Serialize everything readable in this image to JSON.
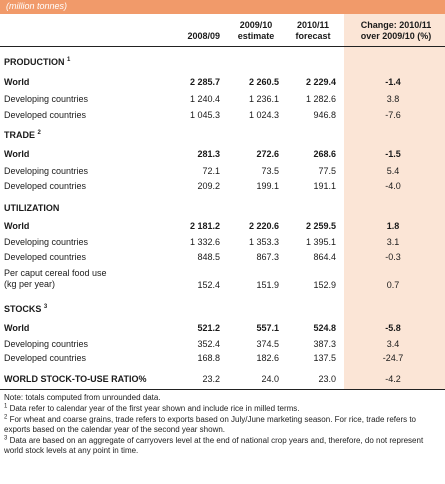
{
  "unit_label": "(million tonnes)",
  "headers": {
    "c1": [
      "",
      "2008/09"
    ],
    "c2": [
      "2009/10",
      "estimate"
    ],
    "c3": [
      "2010/11",
      "forecast"
    ],
    "c4": [
      "Change: 2010/11",
      "over 2009/10 (%)"
    ]
  },
  "sections": [
    {
      "title": "PRODUCTION",
      "sup": "1",
      "rows": [
        {
          "label": "World",
          "v": [
            "2 285.7",
            "2 260.5",
            "2 229.4",
            "-1.4"
          ]
        },
        {
          "label": "Developing countries",
          "v": [
            "1 240.4",
            "1 236.1",
            "1 282.6",
            "3.8"
          ]
        },
        {
          "label": "Developed countries",
          "v": [
            "1 045.3",
            "1 024.3",
            "946.8",
            "-7.6"
          ]
        }
      ]
    },
    {
      "title": "TRADE",
      "sup": "2",
      "rows": [
        {
          "label": "World",
          "v": [
            "281.3",
            "272.6",
            "268.6",
            "-1.5"
          ]
        },
        {
          "label": "Developing countries",
          "v": [
            "72.1",
            "73.5",
            "77.5",
            "5.4"
          ]
        },
        {
          "label": "Developed countries",
          "v": [
            "209.2",
            "199.1",
            "191.1",
            "-4.0"
          ]
        }
      ]
    },
    {
      "title": "UTILIZATION",
      "sup": "",
      "rows": [
        {
          "label": "World",
          "v": [
            "2 181.2",
            "2 220.6",
            "2 259.5",
            "1.8"
          ]
        },
        {
          "label": "Developing countries",
          "v": [
            "1 332.6",
            "1 353.3",
            "1 395.1",
            "3.1"
          ]
        },
        {
          "label": "Developed countries",
          "v": [
            "848.5",
            "867.3",
            "864.4",
            "-0.3"
          ]
        },
        {
          "label": "Per caput cereal food use",
          "label2": "(kg per year)",
          "v": [
            "152.4",
            "151.9",
            "152.9",
            "0.7"
          ]
        }
      ]
    },
    {
      "title": "STOCKS",
      "sup": "3",
      "rows": [
        {
          "label": "World",
          "v": [
            "521.2",
            "557.1",
            "524.8",
            "-5.8"
          ]
        },
        {
          "label": "Developing countries",
          "v": [
            "352.4",
            "374.5",
            "387.3",
            "3.4"
          ]
        },
        {
          "label": "Developed countries",
          "v": [
            "168.8",
            "182.6",
            "137.5",
            "-24.7"
          ]
        }
      ]
    }
  ],
  "ratio_row": {
    "label": "WORLD STOCK-TO-USE RATIO%",
    "v": [
      "23.2",
      "24.0",
      "23.0",
      "-4.2"
    ]
  },
  "notes": [
    {
      "sup": "",
      "text": "Note: totals computed from unrounded data."
    },
    {
      "sup": "1",
      "text": "Data refer to calendar year of the first year shown and include rice in milled terms."
    },
    {
      "sup": "2",
      "text": "For wheat and coarse grains, trade refers to exports based on July/June marketing season. For rice, trade refers to exports based on the calendar year of the second year shown."
    },
    {
      "sup": "3",
      "text": "Data are based on an aggregate of carryovers level at the end of national crop years and, therefore, do not represent world stock levels at any point in time."
    }
  ]
}
